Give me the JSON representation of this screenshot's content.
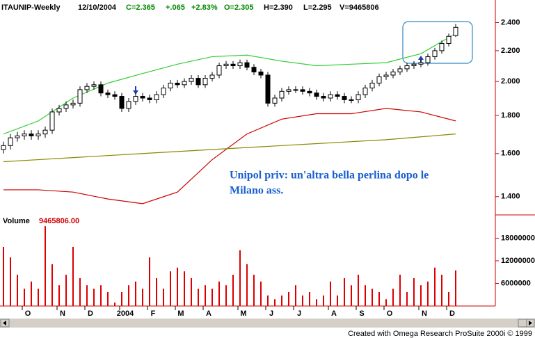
{
  "chart_data": [
    {
      "type": "candlestick",
      "title": "ITAUNIP-Weekly",
      "date": "12/10/2004",
      "header": [
        "C=2.365",
        "+.065",
        "+2.83%",
        "O=2.305",
        "H=2.390",
        "L=2.295",
        "V=9465806"
      ],
      "header_colors": [
        "#008800",
        "#008800",
        "#008800",
        "#008800",
        "#000000",
        "#000000",
        "#000000"
      ],
      "categories": [
        null,
        null,
        null,
        null,
        "O",
        null,
        null,
        null,
        null,
        "N",
        null,
        null,
        null,
        "D",
        null,
        null,
        null,
        null,
        "2004",
        null,
        null,
        null,
        "F",
        null,
        null,
        null,
        "M",
        null,
        null,
        null,
        "A",
        null,
        null,
        null,
        null,
        "M",
        null,
        null,
        null,
        "J",
        null,
        null,
        null,
        "J",
        null,
        null,
        null,
        null,
        "A",
        null,
        null,
        null,
        "S",
        null,
        null,
        null,
        "O",
        null,
        null,
        null,
        null,
        "N",
        null,
        null,
        null,
        "D"
      ],
      "open": [
        1.62,
        1.64,
        1.68,
        1.69,
        1.7,
        1.69,
        1.7,
        1.72,
        1.82,
        1.84,
        1.86,
        1.87,
        1.95,
        1.97,
        1.98,
        1.93,
        1.92,
        1.91,
        1.84,
        1.88,
        1.91,
        1.9,
        1.89,
        1.92,
        1.96,
        1.99,
        1.98,
        2.0,
        2.02,
        1.98,
        2.02,
        2.04,
        2.1,
        2.11,
        2.1,
        2.12,
        2.09,
        2.06,
        2.04,
        1.87,
        1.9,
        1.94,
        1.95,
        1.95,
        1.94,
        1.93,
        1.91,
        1.9,
        1.92,
        1.91,
        1.89,
        1.89,
        1.92,
        1.96,
        1.99,
        2.03,
        2.04,
        2.06,
        2.08,
        2.1,
        2.11,
        2.12,
        2.16,
        2.2,
        2.25,
        2.305
      ],
      "high": [
        1.66,
        1.7,
        1.71,
        1.72,
        1.72,
        1.72,
        1.74,
        1.84,
        1.86,
        1.88,
        1.89,
        1.97,
        1.99,
        2.0,
        2.0,
        1.95,
        1.94,
        1.93,
        1.9,
        1.93,
        1.93,
        1.92,
        1.94,
        1.98,
        2.01,
        2.01,
        2.02,
        2.04,
        2.04,
        2.04,
        2.06,
        2.12,
        2.13,
        2.13,
        2.14,
        2.14,
        2.11,
        2.08,
        2.06,
        1.92,
        1.96,
        1.97,
        1.97,
        1.97,
        1.96,
        1.95,
        1.93,
        1.94,
        1.94,
        1.93,
        1.91,
        1.94,
        1.98,
        2.01,
        2.05,
        2.06,
        2.08,
        2.1,
        2.12,
        2.13,
        2.14,
        2.18,
        2.22,
        2.27,
        2.32,
        2.39
      ],
      "low": [
        1.6,
        1.62,
        1.66,
        1.67,
        1.67,
        1.67,
        1.68,
        1.7,
        1.8,
        1.82,
        1.84,
        1.85,
        1.93,
        1.95,
        1.91,
        1.9,
        1.89,
        1.82,
        1.82,
        1.86,
        1.88,
        1.87,
        1.87,
        1.9,
        1.94,
        1.96,
        1.96,
        1.98,
        1.96,
        1.96,
        2.0,
        2.02,
        2.08,
        2.08,
        2.08,
        2.07,
        2.04,
        2.02,
        1.85,
        1.85,
        1.88,
        1.92,
        1.93,
        1.92,
        1.91,
        1.89,
        1.88,
        1.88,
        1.89,
        1.87,
        1.87,
        1.87,
        1.9,
        1.94,
        1.97,
        2.01,
        2.02,
        2.04,
        2.06,
        2.08,
        2.09,
        2.1,
        2.14,
        2.18,
        2.23,
        2.295
      ],
      "close": [
        1.64,
        1.68,
        1.69,
        1.7,
        1.69,
        1.7,
        1.72,
        1.82,
        1.84,
        1.86,
        1.87,
        1.95,
        1.97,
        1.98,
        1.93,
        1.92,
        1.91,
        1.84,
        1.88,
        1.91,
        1.9,
        1.89,
        1.92,
        1.96,
        1.99,
        1.98,
        2.0,
        2.02,
        1.98,
        2.02,
        2.04,
        2.1,
        2.11,
        2.1,
        2.12,
        2.09,
        2.06,
        2.04,
        1.87,
        1.9,
        1.94,
        1.95,
        1.95,
        1.94,
        1.93,
        1.91,
        1.9,
        1.92,
        1.91,
        1.89,
        1.89,
        1.92,
        1.96,
        1.99,
        2.03,
        2.04,
        2.06,
        2.08,
        2.1,
        2.11,
        2.12,
        2.16,
        2.2,
        2.25,
        2.3,
        2.365
      ],
      "up_color": "#ffffff",
      "down_color": "#000000",
      "series": [
        {
          "color": "#33cc33",
          "x": [
            0,
            5,
            10,
            15,
            20,
            25,
            30,
            35,
            40,
            45,
            50,
            55,
            60,
            65
          ],
          "values": [
            1.7,
            1.77,
            1.9,
            1.99,
            2.05,
            2.11,
            2.16,
            2.17,
            2.13,
            2.1,
            2.11,
            2.12,
            2.18,
            2.32
          ]
        },
        {
          "color": "#cc0000",
          "x": [
            0,
            5,
            10,
            15,
            20,
            25,
            30,
            35,
            40,
            45,
            50,
            55,
            60,
            65
          ],
          "values": [
            1.43,
            1.43,
            1.42,
            1.39,
            1.37,
            1.42,
            1.57,
            1.7,
            1.78,
            1.81,
            1.81,
            1.84,
            1.82,
            1.77
          ]
        },
        {
          "color": "#888800",
          "x": [
            0,
            5,
            10,
            15,
            20,
            25,
            30,
            35,
            40,
            45,
            50,
            55,
            60,
            65
          ],
          "values": [
            1.56,
            1.57,
            1.58,
            1.59,
            1.6,
            1.61,
            1.62,
            1.63,
            1.64,
            1.65,
            1.66,
            1.67,
            1.685,
            1.7
          ]
        }
      ],
      "log_scale": true,
      "ylim": [
        1.326,
        2.574
      ],
      "yticks": [
        {
          "value": 1.4,
          "label": "1.400"
        },
        {
          "value": 1.6,
          "label": "1.600"
        },
        {
          "value": 1.8,
          "label": "1.800"
        },
        {
          "value": 2.0,
          "label": "2.000"
        },
        {
          "value": 2.2,
          "label": "2.200"
        },
        {
          "value": 2.4,
          "label": "2.400"
        }
      ],
      "annotation": [
        "Unipol priv: un'altra bella perlina dopo le",
        "Milano ass."
      ]
    },
    {
      "type": "bar",
      "title": "Volume",
      "current_label": "9465806.00",
      "values": [
        15700000,
        12900000,
        8300000,
        4600000,
        6500000,
        4600000,
        21200000,
        11100000,
        5500000,
        8300000,
        15700000,
        7400000,
        5500000,
        4600000,
        5500000,
        3700000,
        900000,
        3700000,
        5500000,
        6500000,
        4600000,
        12900000,
        7400000,
        4600000,
        9200000,
        10200000,
        9200000,
        7400000,
        4600000,
        5500000,
        4600000,
        6500000,
        5500000,
        8300000,
        14800000,
        11100000,
        8300000,
        6500000,
        2800000,
        1800000,
        2800000,
        3700000,
        5500000,
        2800000,
        3700000,
        1800000,
        2800000,
        6500000,
        2800000,
        7400000,
        5500000,
        8300000,
        5500000,
        4600000,
        3700000,
        1800000,
        4600000,
        8300000,
        3700000,
        7400000,
        5500000,
        6500000,
        10200000,
        8300000,
        3700000,
        9465806
      ],
      "color": "#dd0000",
      "ylim": [
        0,
        24000000
      ],
      "yticks": [
        6000000,
        12000000,
        18000000
      ]
    }
  ],
  "footer": "Created with Omega Research ProSuite 2000i © 1999"
}
